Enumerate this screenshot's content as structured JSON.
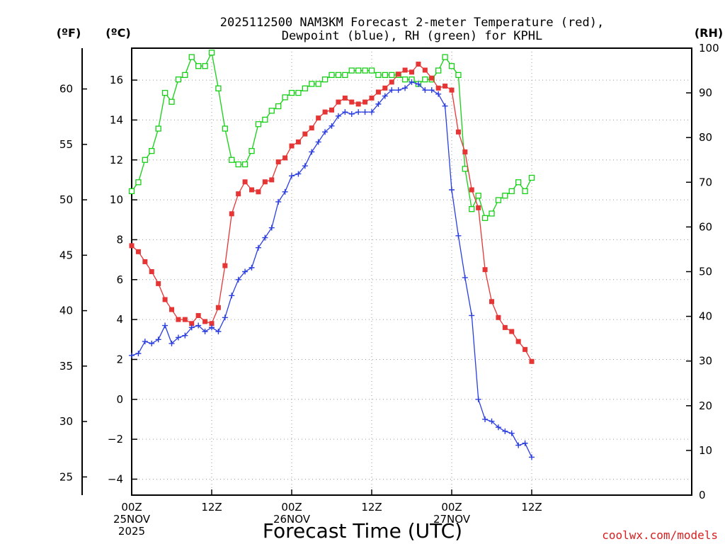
{
  "title_line1": "2025112500 NAM3KM Forecast 2-meter Temperature (red),",
  "title_line2": "Dewpoint (blue), RH (green) for KPHL",
  "units": {
    "fahrenheit": "(ºF)",
    "celsius": "(ºC)",
    "rh": "(RH)"
  },
  "xlabel": "Forecast Time (UTC)",
  "credit": "coolwx.com/models",
  "colors": {
    "temperature": "#e53535",
    "dewpoint": "#2a3ee0",
    "rh": "#16d016"
  },
  "chart_data": {
    "type": "line",
    "x_unit": "forecast hour",
    "x_range": [
      0,
      84
    ],
    "x_ticks": [
      {
        "hour": 0,
        "time": "00Z",
        "date": "25NOV",
        "year": "2025"
      },
      {
        "hour": 12,
        "time": "12Z"
      },
      {
        "hour": 24,
        "time": "00Z",
        "date": "26NOV"
      },
      {
        "hour": 36,
        "time": "12Z"
      },
      {
        "hour": 48,
        "time": "00Z",
        "date": "27NOV"
      },
      {
        "hour": 60,
        "time": "12Z"
      }
    ],
    "y_celsius": {
      "range": [
        -4.8,
        17.6
      ],
      "ticks": [
        "-4",
        "-2",
        "0",
        "2",
        "4",
        "6",
        "8",
        "10",
        "12",
        "14",
        "16"
      ]
    },
    "y_fahrenheit": {
      "range": [
        23.36,
        63.68
      ],
      "ticks": [
        "25",
        "30",
        "35",
        "40",
        "45",
        "50",
        "55",
        "60"
      ]
    },
    "y_rh": {
      "range": [
        0,
        100
      ],
      "ticks": [
        "0",
        "10",
        "20",
        "30",
        "40",
        "50",
        "60",
        "70",
        "80",
        "90",
        "100"
      ]
    },
    "series": [
      {
        "name": "2-meter Temperature",
        "color": "red",
        "axis": "celsius",
        "marker": "filled-square",
        "x": [
          0,
          1,
          2,
          3,
          4,
          5,
          6,
          7,
          8,
          9,
          10,
          11,
          12,
          13,
          14,
          15,
          16,
          17,
          18,
          19,
          20,
          21,
          22,
          23,
          24,
          25,
          26,
          27,
          28,
          29,
          30,
          31,
          32,
          33,
          34,
          35,
          36,
          37,
          38,
          39,
          40,
          41,
          42,
          43,
          44,
          45,
          46,
          47,
          48,
          49,
          50,
          51,
          52,
          53,
          54,
          55,
          56,
          57,
          58,
          59,
          60
        ],
        "values": [
          7.7,
          7.4,
          6.9,
          6.4,
          5.8,
          5.0,
          4.5,
          4.0,
          4.0,
          3.8,
          4.2,
          3.9,
          3.8,
          4.6,
          6.7,
          9.3,
          10.3,
          10.9,
          10.5,
          10.4,
          10.9,
          11.0,
          11.9,
          12.1,
          12.7,
          12.9,
          13.3,
          13.6,
          14.1,
          14.4,
          14.5,
          14.9,
          15.1,
          14.9,
          14.8,
          14.9,
          15.1,
          15.4,
          15.6,
          15.9,
          16.3,
          16.5,
          16.4,
          16.8,
          16.5,
          16.1,
          15.6,
          15.7,
          15.5,
          13.4,
          12.4,
          10.5,
          9.6,
          6.5,
          4.9,
          4.1,
          3.6,
          3.4,
          2.9,
          2.5,
          1.9
        ]
      },
      {
        "name": "Dewpoint",
        "color": "blue",
        "axis": "celsius",
        "marker": "plus",
        "x": [
          0,
          1,
          2,
          3,
          4,
          5,
          6,
          7,
          8,
          9,
          10,
          11,
          12,
          13,
          14,
          15,
          16,
          17,
          18,
          19,
          20,
          21,
          22,
          23,
          24,
          25,
          26,
          27,
          28,
          29,
          30,
          31,
          32,
          33,
          34,
          35,
          36,
          37,
          38,
          39,
          40,
          41,
          42,
          43,
          44,
          45,
          46,
          47,
          48,
          49,
          50,
          51,
          52,
          53,
          54,
          55,
          56,
          57,
          58,
          59,
          60
        ],
        "values": [
          2.2,
          2.3,
          2.9,
          2.8,
          3.0,
          3.7,
          2.8,
          3.1,
          3.2,
          3.6,
          3.7,
          3.4,
          3.6,
          3.4,
          4.1,
          5.2,
          6.0,
          6.4,
          6.6,
          7.6,
          8.1,
          8.6,
          9.9,
          10.4,
          11.2,
          11.3,
          11.7,
          12.4,
          12.9,
          13.4,
          13.7,
          14.2,
          14.4,
          14.3,
          14.4,
          14.4,
          14.4,
          14.8,
          15.2,
          15.5,
          15.5,
          15.6,
          15.9,
          15.8,
          15.5,
          15.5,
          15.3,
          14.7,
          10.5,
          8.2,
          6.1,
          4.2,
          0.0,
          -1.0,
          -1.1,
          -1.4,
          -1.6,
          -1.7,
          -2.3,
          -2.2,
          -2.9
        ]
      },
      {
        "name": "RH",
        "color": "green",
        "axis": "rh",
        "marker": "open-square",
        "x": [
          0,
          1,
          2,
          3,
          4,
          5,
          6,
          7,
          8,
          9,
          10,
          11,
          12,
          13,
          14,
          15,
          16,
          17,
          18,
          19,
          20,
          21,
          22,
          23,
          24,
          25,
          26,
          27,
          28,
          29,
          30,
          31,
          32,
          33,
          34,
          35,
          36,
          37,
          38,
          39,
          40,
          41,
          42,
          43,
          44,
          45,
          46,
          47,
          48,
          49,
          50,
          51,
          52,
          53,
          54,
          55,
          56,
          57,
          58,
          59,
          60
        ],
        "values": [
          68,
          70,
          75,
          77,
          82,
          90,
          88,
          93,
          94,
          98,
          96,
          96,
          99,
          91,
          82,
          75,
          74,
          74,
          77,
          83,
          84,
          86,
          87,
          89,
          90,
          90,
          91,
          92,
          92,
          93,
          94,
          94,
          94,
          95,
          95,
          95,
          95,
          94,
          94,
          94,
          94,
          93,
          93,
          92,
          93,
          93,
          95,
          98,
          96,
          94,
          73,
          64,
          67,
          62,
          63,
          66,
          67,
          68,
          70,
          68,
          71
        ]
      }
    ]
  }
}
